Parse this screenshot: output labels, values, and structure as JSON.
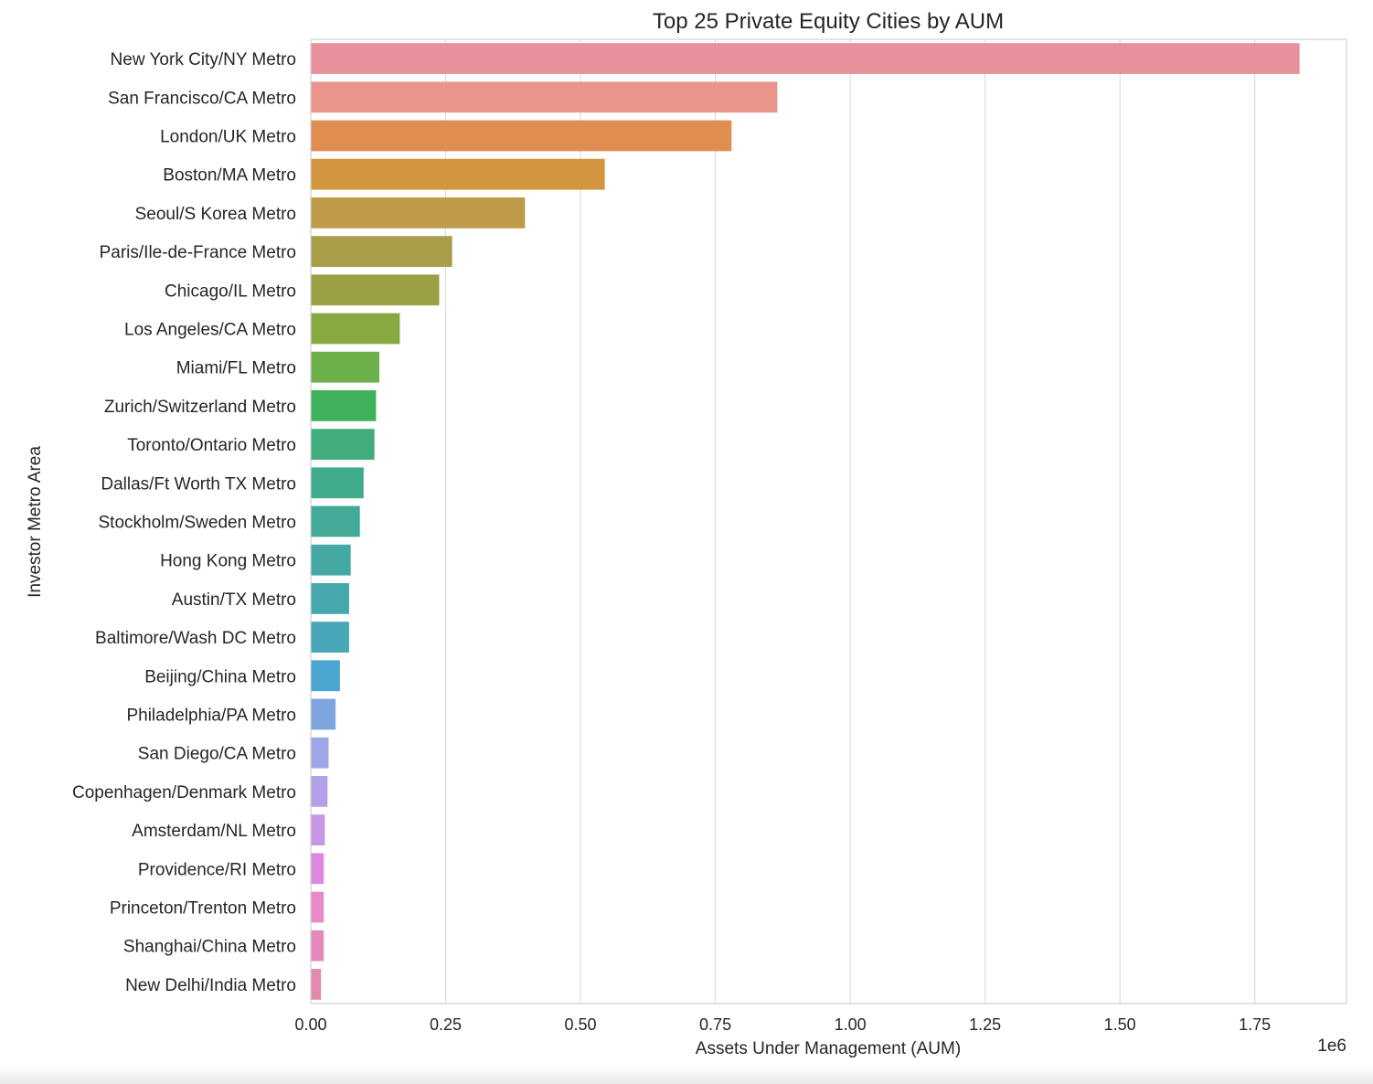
{
  "chart_data": {
    "type": "bar",
    "orientation": "horizontal",
    "title": "Top 25 Private Equity Cities by AUM",
    "xlabel": "Assets Under Management (AUM)",
    "ylabel": "Investor Metro Area",
    "x_offset_label": "1e6",
    "xlim": [
      0,
      1.92
    ],
    "xticks": [
      0.0,
      0.25,
      0.5,
      0.75,
      1.0,
      1.25,
      1.5,
      1.75
    ],
    "xtick_labels": [
      "0.00",
      "0.25",
      "0.50",
      "0.75",
      "1.00",
      "1.25",
      "1.50",
      "1.75"
    ],
    "grid": "x",
    "categories": [
      "New York City/NY Metro",
      "San Francisco/CA Metro",
      "London/UK Metro",
      "Boston/MA Metro",
      "Seoul/S Korea Metro",
      "Paris/Ile-de-France Metro",
      "Chicago/IL Metro",
      "Los Angeles/CA Metro",
      "Miami/FL Metro",
      "Zurich/Switzerland Metro",
      "Toronto/Ontario Metro",
      "Dallas/Ft Worth TX Metro",
      "Stockholm/Sweden Metro",
      "Hong Kong Metro",
      "Austin/TX Metro",
      "Baltimore/Wash DC Metro",
      "Beijing/China Metro",
      "Philadelphia/PA Metro",
      "San Diego/CA Metro",
      "Copenhagen/Denmark Metro",
      "Amsterdam/NL Metro",
      "Providence/RI Metro",
      "Princeton/Trenton Metro",
      "Shanghai/China Metro",
      "New Delhi/India Metro"
    ],
    "values": [
      1.833,
      0.865,
      0.78,
      0.545,
      0.397,
      0.262,
      0.238,
      0.165,
      0.127,
      0.121,
      0.118,
      0.098,
      0.091,
      0.074,
      0.071,
      0.071,
      0.054,
      0.046,
      0.033,
      0.031,
      0.026,
      0.024,
      0.024,
      0.024,
      0.019
    ],
    "colors": [
      "#e8909c",
      "#e9958b",
      "#e08d52",
      "#d3953f",
      "#be9a49",
      "#a89d48",
      "#9aa043",
      "#88a841",
      "#6db04a",
      "#3fb15a",
      "#41ad7c",
      "#41ac8c",
      "#43aa97",
      "#45a9a3",
      "#46a8ac",
      "#48a6b9",
      "#4aa6d1",
      "#7ea5de",
      "#9fa6e6",
      "#b3a0e8",
      "#c796e6",
      "#df88e2",
      "#e78ac8",
      "#e489bb",
      "#e28aac"
    ]
  }
}
